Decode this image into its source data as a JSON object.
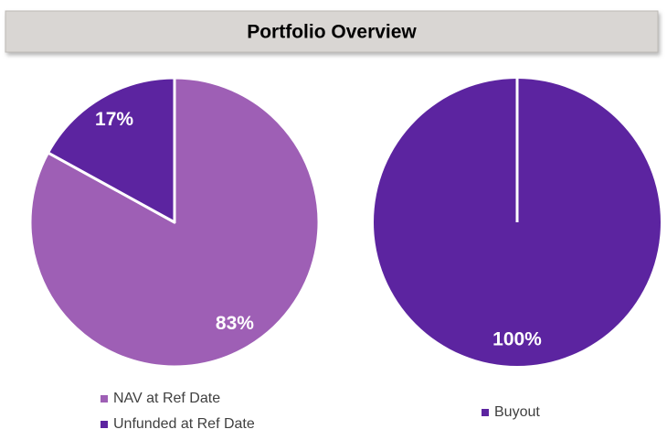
{
  "header": {
    "title": "Portfolio Overview"
  },
  "chart_data": [
    {
      "type": "pie",
      "categories": [
        "NAV at Ref Date",
        "Unfunded at Ref Date"
      ],
      "values": [
        83,
        17
      ],
      "value_labels": [
        "83%",
        "17%"
      ],
      "colors": [
        "#9e5fb5",
        "#5c24a0"
      ]
    },
    {
      "type": "pie",
      "categories": [
        "Buyout"
      ],
      "values": [
        100
      ],
      "value_labels": [
        "100%"
      ],
      "colors": [
        "#5c24a0"
      ]
    }
  ]
}
